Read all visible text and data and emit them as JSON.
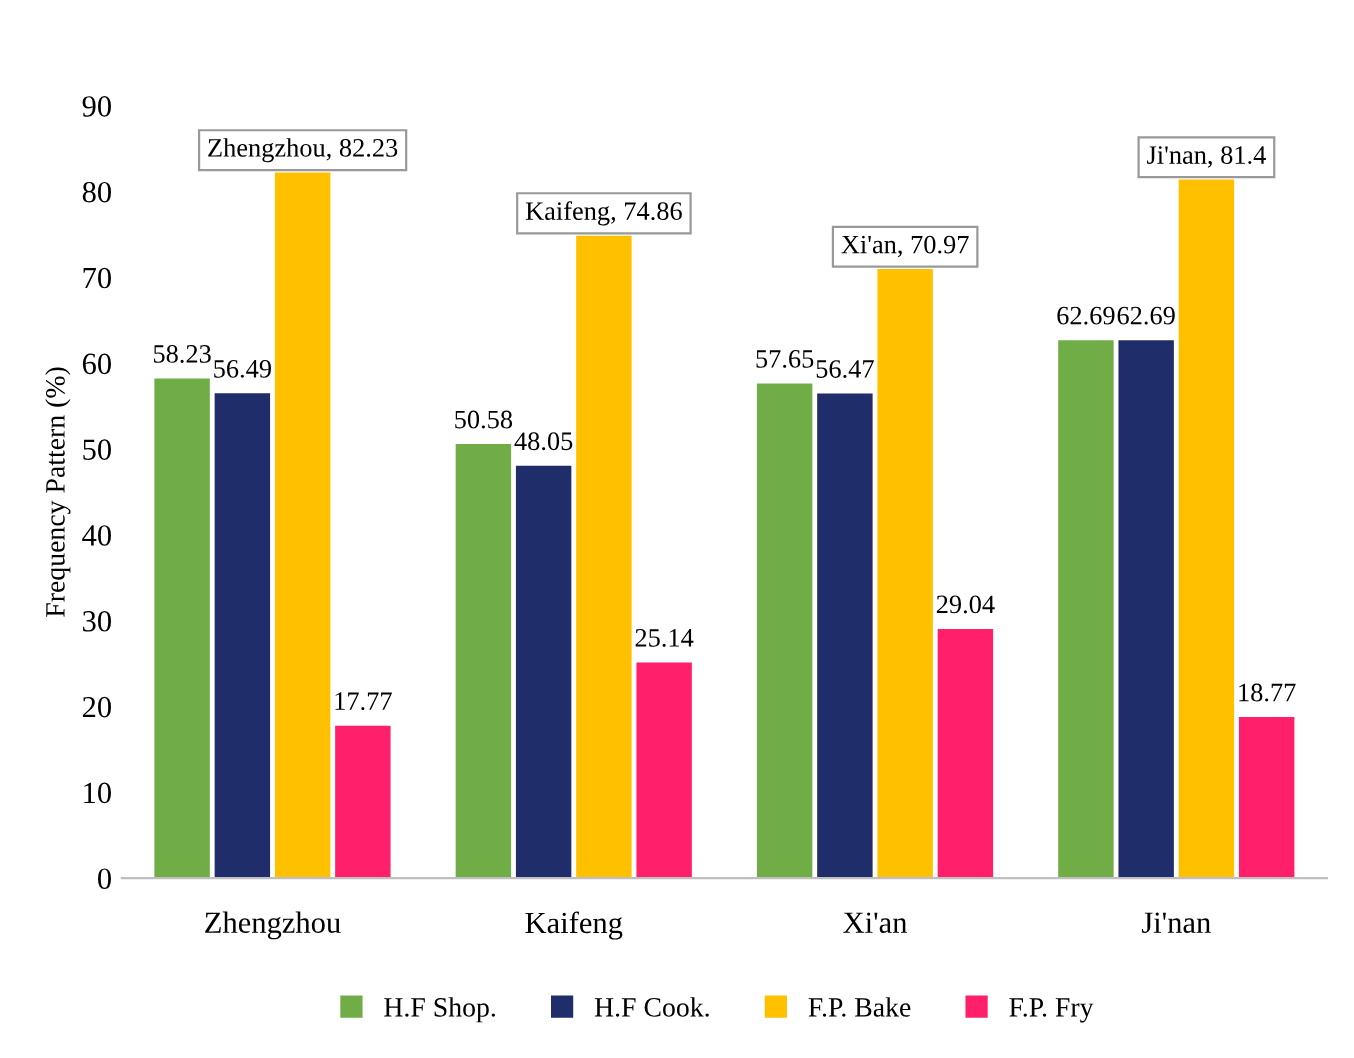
{
  "chart_data": {
    "type": "bar",
    "ylabel": "Frequency Pattern (%)",
    "categories": [
      "Zhengzhou",
      "Kaifeng",
      "Xi'an",
      "Ji'nan"
    ],
    "series": [
      {
        "name": "H.F Shop.",
        "color": "#70ad47",
        "values": [
          58.23,
          50.58,
          57.65,
          62.69
        ],
        "value_labels": [
          "58.23",
          "50.58",
          "57.65",
          "62.69"
        ]
      },
      {
        "name": "H.F Cook.",
        "color": "#1f2d6b",
        "values": [
          56.49,
          48.05,
          56.47,
          62.69
        ],
        "value_labels": [
          "56.49",
          "48.05",
          "56.47",
          "62.69"
        ]
      },
      {
        "name": "F.P. Bake",
        "color": "#ffc000",
        "values": [
          82.23,
          74.86,
          70.97,
          81.4
        ],
        "value_labels": [
          "Zhengzhou, 82.23",
          "Kaifeng, 74.86",
          "Xi'an, 70.97",
          "Ji'nan, 81.4"
        ]
      },
      {
        "name": "F.P. Fry",
        "color": "#ff1f6b",
        "values": [
          17.77,
          25.14,
          29.04,
          18.77
        ],
        "value_labels": [
          "17.77",
          "25.14",
          "29.04",
          "18.77"
        ]
      }
    ],
    "ylim": [
      0,
      90
    ],
    "yticks": [
      0,
      10,
      20,
      30,
      40,
      50,
      60,
      70,
      80,
      90
    ],
    "grid": false,
    "legend": "bottom"
  }
}
